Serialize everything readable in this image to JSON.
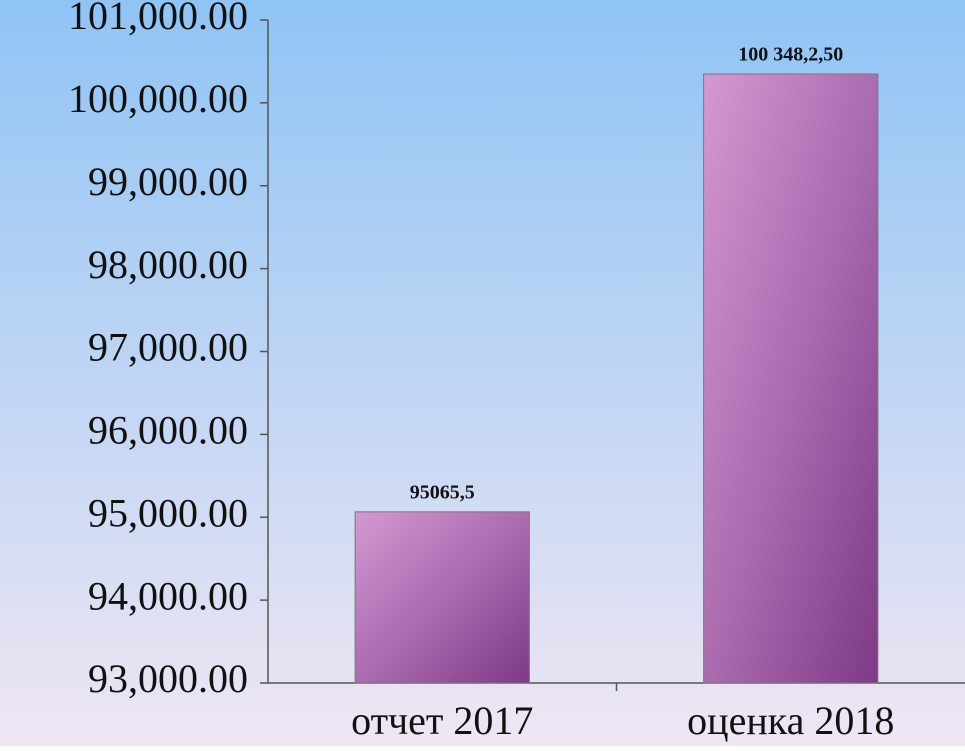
{
  "chart_data": {
    "type": "bar",
    "categories": [
      "отчет 2017",
      "оценка 2018"
    ],
    "values": [
      95065.5,
      100348.25
    ],
    "value_labels": [
      "95065,5",
      "100 348,2,50"
    ],
    "color": "#a855a0",
    "ylim": [
      93000,
      101000
    ],
    "yticks": [
      {
        "value": 93000,
        "label": "93,000.00"
      },
      {
        "value": 94000,
        "label": "94,000.00"
      },
      {
        "value": 95000,
        "label": "95,000.00"
      },
      {
        "value": 96000,
        "label": "96,000.00"
      },
      {
        "value": 97000,
        "label": "97,000.00"
      },
      {
        "value": 98000,
        "label": "98,000.00"
      },
      {
        "value": 99000,
        "label": "99,000.00"
      },
      {
        "value": 100000,
        "label": "100,000.00"
      },
      {
        "value": 101000,
        "label": "101,000.00"
      }
    ],
    "grid": false
  }
}
